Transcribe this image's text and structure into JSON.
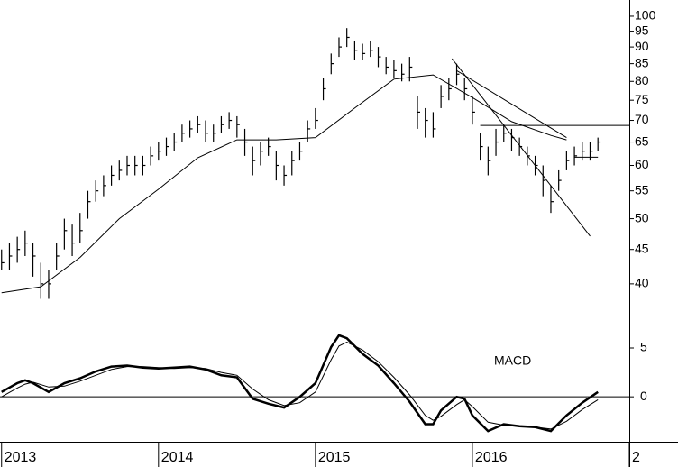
{
  "chart_data": [
    {
      "type": "ohlc",
      "x": [
        2013,
        2013.05,
        2013.1,
        2013.15,
        2013.2,
        2013.25,
        2013.3,
        2013.35,
        2013.4,
        2013.45,
        2013.5,
        2013.55,
        2013.6,
        2013.65,
        2013.7,
        2013.75,
        2013.8,
        2013.85,
        2013.9,
        2013.95,
        2014,
        2014.05,
        2014.1,
        2014.15,
        2014.2,
        2014.25,
        2014.3,
        2014.35,
        2014.4,
        2014.45,
        2014.5,
        2014.55,
        2014.6,
        2014.65,
        2014.7,
        2014.75,
        2014.8,
        2014.85,
        2014.9,
        2014.95,
        2015,
        2015.05,
        2015.1,
        2015.15,
        2015.2,
        2015.25,
        2015.3,
        2015.35,
        2015.4,
        2015.45,
        2015.5,
        2015.55,
        2015.6,
        2015.65,
        2015.7,
        2015.75,
        2015.8,
        2015.85,
        2015.9,
        2015.95,
        2016,
        2016.05,
        2016.1,
        2016.15,
        2016.2,
        2016.25,
        2016.3,
        2016.35,
        2016.4,
        2016.45,
        2016.5,
        2016.55,
        2016.6,
        2016.65,
        2016.7,
        2016.75,
        2016.8
      ],
      "high": [
        45,
        46,
        47,
        48,
        46,
        43,
        42,
        46,
        50,
        49,
        51,
        55,
        57,
        58,
        60,
        61,
        62,
        62,
        62,
        64,
        65,
        66,
        67,
        69,
        70,
        71,
        70,
        69,
        71,
        72,
        71,
        68,
        64,
        65,
        66,
        63,
        60,
        63,
        65,
        70,
        73,
        81,
        88,
        93,
        96,
        92,
        91,
        92,
        90,
        87,
        86,
        85,
        87,
        76,
        73,
        72,
        79,
        81,
        85,
        81,
        76,
        67,
        64,
        68,
        69,
        68,
        66,
        64,
        62,
        60,
        56,
        59,
        63,
        64,
        65,
        65,
        66
      ],
      "low": [
        42,
        42,
        43,
        44,
        41,
        38,
        38,
        42,
        45,
        44,
        46,
        50,
        53,
        54,
        56,
        57,
        58,
        58,
        58,
        60,
        61,
        62,
        63,
        65,
        66,
        67,
        65,
        65,
        67,
        68,
        66,
        62,
        58,
        60,
        62,
        57,
        56,
        58,
        61,
        65,
        68,
        75,
        82,
        87,
        90,
        86,
        86,
        87,
        84,
        82,
        81,
        80,
        80,
        68,
        66,
        66,
        73,
        75,
        79,
        75,
        69,
        61,
        58,
        62,
        65,
        63,
        62,
        60,
        58,
        54,
        51,
        55,
        59,
        60,
        61,
        61,
        63
      ],
      "close": [
        43,
        44,
        45,
        46,
        44,
        40,
        40,
        44,
        48,
        46,
        48,
        53,
        55,
        56,
        58,
        59,
        60,
        60,
        60,
        62,
        63,
        64,
        65,
        67,
        68,
        69,
        67,
        67,
        69,
        70,
        69,
        65,
        61,
        63,
        64,
        60,
        58,
        61,
        63,
        68,
        70,
        78,
        85,
        90,
        93,
        89,
        88,
        89,
        87,
        84,
        83,
        82,
        84,
        72,
        70,
        68,
        76,
        78,
        82,
        78,
        72,
        64,
        61,
        65,
        67,
        66,
        64,
        62,
        60,
        57,
        53,
        57,
        61,
        62,
        63,
        63,
        65
      ],
      "color": "#000000",
      "series": [
        {
          "x": [
            2013,
            2013.25,
            2013.5,
            2013.75,
            2014,
            2014.25,
            2014.5,
            2014.75,
            2015,
            2015.25,
            2015.5,
            2015.75,
            2016,
            2016.25,
            2016.5,
            2016.6
          ],
          "values": [
            38.8,
            39.6,
            43.8,
            50,
            55.3,
            61.6,
            65.5,
            65.5,
            66,
            73,
            80.6,
            81.8,
            75.7,
            69.7,
            66.5,
            65.5
          ],
          "color": "#000000"
        }
      ],
      "lines": [
        {
          "x": [
            2015.87,
            2016.75
          ],
          "y": [
            86.5,
            47.1
          ]
        },
        {
          "x": [
            2015.9,
            2016.6
          ],
          "y": [
            83,
            66
          ]
        },
        {
          "x": [
            2016.05,
            2017.0
          ],
          "y": [
            68.8,
            68.8
          ]
        },
        {
          "x": [
            2016.65,
            2016.8
          ],
          "y": [
            61.7,
            61.7
          ]
        }
      ],
      "log_scale": true,
      "xlim": [
        2012.99,
        2017.0
      ],
      "ylim": [
        34.8,
        105.7
      ],
      "yticks": [
        40,
        45,
        50,
        55,
        60,
        65,
        70,
        75,
        80,
        85,
        90,
        95,
        100
      ]
    },
    {
      "type": "line",
      "annotation": "MACD",
      "series": [
        {
          "x": [
            2013,
            2013.1,
            2013.15,
            2013.2,
            2013.3,
            2013.4,
            2013.5,
            2013.6,
            2013.7,
            2013.8,
            2013.9,
            2014,
            2014.1,
            2014.2,
            2014.3,
            2014.4,
            2014.5,
            2014.6,
            2014.7,
            2014.8,
            2014.9,
            2015,
            2015.1,
            2015.15,
            2015.2,
            2015.3,
            2015.4,
            2015.5,
            2015.6,
            2015.7,
            2015.75,
            2015.8,
            2015.9,
            2015.95,
            2016,
            2016.1,
            2016.2,
            2016.3,
            2016.4,
            2016.5,
            2016.6,
            2016.7,
            2016.8
          ],
          "values": [
            0.5,
            1.4,
            1.7,
            1.4,
            0.5,
            1.4,
            1.9,
            2.6,
            3.1,
            3.2,
            3.0,
            2.9,
            3.0,
            3.1,
            2.8,
            2.2,
            2.0,
            -0.2,
            -0.7,
            -1.1,
            0,
            1.4,
            5.1,
            6.3,
            6.0,
            4.4,
            3.2,
            1.4,
            -0.5,
            -2.8,
            -2.8,
            -1.4,
            0,
            -0.2,
            -1.9,
            -3.5,
            -2.8,
            -3.0,
            -3.1,
            -3.5,
            -1.9,
            -0.6,
            0.5
          ],
          "color": "#000000"
        },
        {
          "x": [
            2013,
            2013.1,
            2013.15,
            2013.2,
            2013.3,
            2013.4,
            2013.5,
            2013.6,
            2013.7,
            2013.8,
            2013.9,
            2014,
            2014.1,
            2014.2,
            2014.3,
            2014.4,
            2014.5,
            2014.6,
            2014.7,
            2014.8,
            2014.9,
            2015,
            2015.1,
            2015.15,
            2015.2,
            2015.3,
            2015.4,
            2015.5,
            2015.6,
            2015.7,
            2015.75,
            2015.8,
            2015.9,
            2015.95,
            2016,
            2016.1,
            2016.2,
            2016.3,
            2016.4,
            2016.5,
            2016.6,
            2016.7,
            2016.8
          ],
          "values": [
            0,
            0.9,
            1.3,
            1.5,
            1.0,
            1.1,
            1.6,
            2.2,
            2.8,
            3.1,
            3.1,
            3.0,
            2.9,
            3.0,
            2.9,
            2.5,
            2.2,
            0.8,
            -0.3,
            -0.9,
            -0.6,
            0.5,
            3.8,
            5.2,
            5.6,
            4.8,
            3.6,
            2.0,
            0.2,
            -1.9,
            -2.4,
            -2.0,
            -0.8,
            -0.3,
            -1.0,
            -2.6,
            -2.9,
            -3.0,
            -3.1,
            -3.3,
            -2.5,
            -1.3,
            -0.3
          ],
          "color": "#000000"
        }
      ],
      "xlim": [
        2012.99,
        2017.0
      ],
      "xticks": [
        2013,
        2014,
        2015,
        2016,
        {
          "value": 2017,
          "label": "2"
        }
      ],
      "ylim": [
        -4.6,
        7.4
      ],
      "yticks": [
        0,
        5
      ],
      "zero_line": true
    }
  ]
}
